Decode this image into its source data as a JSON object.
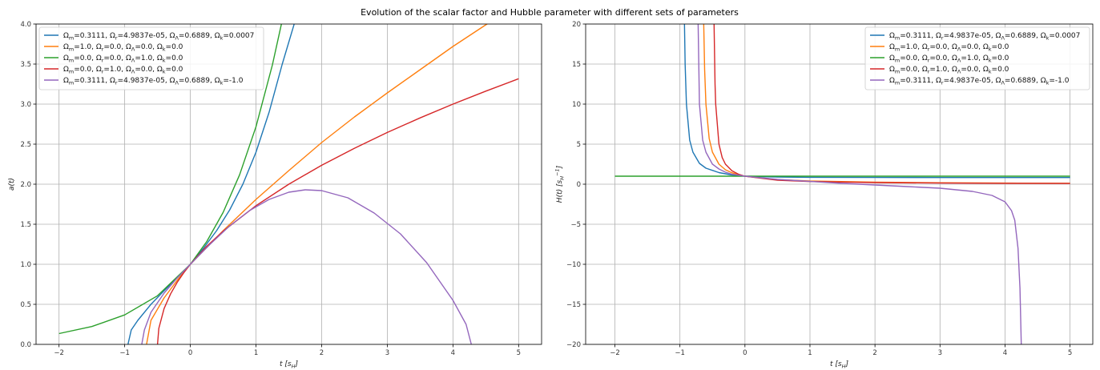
{
  "figure": {
    "title": "Evolution of the scalar factor and Hubble parameter with different sets of parameters"
  },
  "chart_data": [
    {
      "type": "line",
      "title": "",
      "xlabel": "t [s_H]",
      "ylabel": "a(t)",
      "xlim": [
        -2.35,
        5.35
      ],
      "ylim": [
        0,
        4
      ],
      "xticks": [
        -2,
        -1,
        0,
        1,
        2,
        3,
        4,
        5
      ],
      "xtick_labels": [
        "−2",
        "−1",
        "0",
        "1",
        "2",
        "3",
        "4",
        "5"
      ],
      "yticks": [
        0,
        0.5,
        1,
        1.5,
        2,
        2.5,
        3,
        3.5,
        4
      ],
      "ytick_labels": [
        "0.0",
        "0.5",
        "1.0",
        "1.5",
        "2.0",
        "2.5",
        "3.0",
        "3.5",
        "4.0"
      ],
      "grid": true,
      "legend_position": "top-left",
      "series": [
        {
          "name": "Ωm=0.3111,  Ωr=4.9837e-05,  ΩΛ=0.6889,  Ωk=0.0007",
          "color": "#1f77b4",
          "x": [
            -0.95,
            -0.9,
            -0.8,
            -0.6,
            -0.4,
            -0.2,
            0,
            0.2,
            0.4,
            0.6,
            0.8,
            1.0,
            1.2,
            1.4,
            1.6
          ],
          "y": [
            0.0,
            0.18,
            0.3,
            0.5,
            0.67,
            0.83,
            1.0,
            1.2,
            1.42,
            1.68,
            2.0,
            2.4,
            2.9,
            3.5,
            4.05
          ]
        },
        {
          "name": "Ωm=1.0,  Ωr=0.0,  ΩΛ=0.0,  Ωk=0.0",
          "color": "#ff7f0e",
          "x": [
            -0.667,
            -0.6,
            -0.4,
            -0.2,
            0,
            0.5,
            1.0,
            1.5,
            2.0,
            2.5,
            3.0,
            3.5,
            4.0,
            4.5,
            4.6
          ],
          "y": [
            0.0,
            0.3,
            0.58,
            0.8,
            1.0,
            1.42,
            1.81,
            2.17,
            2.52,
            2.84,
            3.14,
            3.43,
            3.72,
            3.99,
            4.04
          ]
        },
        {
          "name": "Ωm=0.0,  Ωr=0.0,  ΩΛ=1.0,  Ωk=0.0",
          "color": "#2ca02c",
          "x": [
            -2.0,
            -1.5,
            -1.0,
            -0.5,
            0,
            0.25,
            0.5,
            0.75,
            1.0,
            1.25,
            1.39
          ],
          "y": [
            0.135,
            0.223,
            0.368,
            0.607,
            1.0,
            1.284,
            1.649,
            2.117,
            2.718,
            3.49,
            4.01
          ]
        },
        {
          "name": "Ωm=0.0,  Ωr=1.0,  ΩΛ=0.0,  Ωk=0.0",
          "color": "#d62728",
          "x": [
            -0.5,
            -0.48,
            -0.4,
            -0.3,
            -0.2,
            -0.1,
            0,
            0.25,
            0.5,
            1.0,
            1.5,
            2.0,
            2.5,
            3.0,
            3.5,
            4.0,
            4.5,
            5.0
          ],
          "y": [
            0.0,
            0.2,
            0.447,
            0.632,
            0.775,
            0.894,
            1.0,
            1.225,
            1.414,
            1.732,
            2.0,
            2.236,
            2.449,
            2.646,
            2.828,
            3.0,
            3.162,
            3.317
          ]
        },
        {
          "name": "Ωm=0.3111,  Ωr=4.9837e-05,  ΩΛ=0.6889,  Ωk=-1.0",
          "color": "#9467bd",
          "x": [
            -0.74,
            -0.7,
            -0.6,
            -0.4,
            -0.2,
            0,
            0.3,
            0.6,
            0.9,
            1.2,
            1.5,
            1.75,
            2.0,
            2.4,
            2.8,
            3.2,
            3.6,
            4.0,
            4.2,
            4.28
          ],
          "y": [
            0.0,
            0.18,
            0.4,
            0.64,
            0.83,
            1.0,
            1.25,
            1.48,
            1.67,
            1.81,
            1.9,
            1.93,
            1.92,
            1.83,
            1.64,
            1.38,
            1.02,
            0.55,
            0.25,
            0.0
          ]
        }
      ]
    },
    {
      "type": "line",
      "title": "",
      "xlabel": "t [s_H]",
      "ylabel": "H(t) [s_H^-1]",
      "xlim": [
        -2.45,
        5.35
      ],
      "ylim": [
        -20,
        20
      ],
      "xticks": [
        -2,
        -1,
        0,
        1,
        2,
        3,
        4,
        5
      ],
      "xtick_labels": [
        "−2",
        "−1",
        "0",
        "1",
        "2",
        "3",
        "4",
        "5"
      ],
      "yticks": [
        -20,
        -15,
        -10,
        -5,
        0,
        5,
        10,
        15,
        20
      ],
      "ytick_labels": [
        "−20",
        "−15",
        "−10",
        "−5",
        "0",
        "5",
        "10",
        "15",
        "20"
      ],
      "grid": true,
      "legend_position": "top-right",
      "series": [
        {
          "name": "Ωm=0.3111,  Ωr=4.9837e-05,  ΩΛ=0.6889,  Ωk=0.0007",
          "color": "#1f77b4",
          "x": [
            -0.93,
            -0.92,
            -0.9,
            -0.85,
            -0.8,
            -0.7,
            -0.6,
            -0.4,
            -0.2,
            0,
            0.5,
            1.0,
            2.0,
            3.0,
            4.0,
            5.0
          ],
          "y": [
            20,
            15,
            10,
            5.5,
            4.0,
            2.6,
            2.0,
            1.45,
            1.15,
            1.0,
            0.9,
            0.86,
            0.84,
            0.835,
            0.83,
            0.83
          ]
        },
        {
          "name": "Ωm=1.0,  Ωr=0.0,  ΩΛ=0.0,  Ωk=0.0",
          "color": "#ff7f0e",
          "x": [
            -0.634,
            -0.62,
            -0.6,
            -0.55,
            -0.5,
            -0.4,
            -0.3,
            -0.2,
            -0.1,
            0,
            0.5,
            1.0,
            2.0,
            3.0,
            4.0,
            5.0
          ],
          "y": [
            20,
            14.3,
            10,
            5.7,
            4.0,
            2.5,
            1.8,
            1.43,
            1.18,
            1.0,
            0.57,
            0.4,
            0.25,
            0.18,
            0.14,
            0.118
          ]
        },
        {
          "name": "Ωm=0.0,  Ωr=0.0,  ΩΛ=1.0,  Ωk=0.0",
          "color": "#2ca02c",
          "x": [
            -2,
            5
          ],
          "y": [
            1,
            1
          ]
        },
        {
          "name": "Ωm=0.0,  Ωr=1.0,  ΩΛ=0.0,  Ωk=0.0",
          "color": "#d62728",
          "x": [
            -0.475,
            -0.46,
            -0.45,
            -0.4,
            -0.35,
            -0.3,
            -0.2,
            -0.1,
            0,
            0.5,
            1.0,
            2.0,
            3.0,
            4.0,
            5.0
          ],
          "y": [
            20,
            12.5,
            10,
            5.0,
            3.33,
            2.5,
            1.67,
            1.25,
            1.0,
            0.5,
            0.333,
            0.2,
            0.143,
            0.111,
            0.091
          ]
        },
        {
          "name": "Ωm=0.3111,  Ωr=4.9837e-05,  ΩΛ=0.6889,  Ωk=-1.0",
          "color": "#9467bd",
          "x": [
            -0.72,
            -0.71,
            -0.7,
            -0.65,
            -0.6,
            -0.5,
            -0.4,
            -0.3,
            -0.2,
            0,
            0.5,
            1.0,
            1.5,
            2.0,
            2.5,
            3.0,
            3.5,
            3.8,
            4.0,
            4.1,
            4.15,
            4.2,
            4.23,
            4.25
          ],
          "y": [
            20,
            15,
            10,
            5.5,
            4.0,
            2.5,
            1.9,
            1.5,
            1.25,
            1.0,
            0.6,
            0.35,
            0.1,
            -0.1,
            -0.3,
            -0.5,
            -0.9,
            -1.4,
            -2.2,
            -3.3,
            -4.5,
            -8.0,
            -13.0,
            -20.0
          ]
        }
      ]
    }
  ]
}
